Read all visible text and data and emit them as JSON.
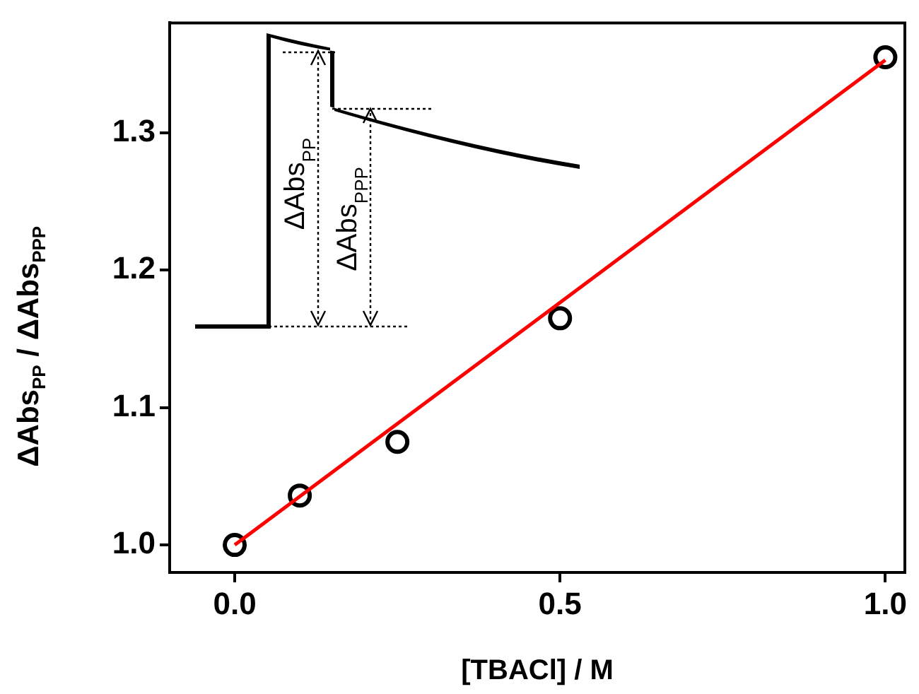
{
  "chart_data": {
    "type": "scatter",
    "xlabel": "[TBACl] / M",
    "ylabel": "ΔAbs$_{PP}$ / ΔAbs$_{PPP}$",
    "xlim": [
      -0.1,
      1.03
    ],
    "ylim": [
      0.98,
      1.38
    ],
    "xticks": [
      {
        "value": 0,
        "label": "0.0"
      },
      {
        "value": 0.5,
        "label": "0.5"
      },
      {
        "value": 1,
        "label": "1.0"
      }
    ],
    "yticks": [
      {
        "value": 1,
        "label": "1.0"
      },
      {
        "value": 1.1,
        "label": "1.1"
      },
      {
        "value": 1.2,
        "label": "1.2"
      },
      {
        "value": 1.3,
        "label": "1.3"
      }
    ],
    "grid": false,
    "legend": false,
    "annotations": [
      "ΔAbs$_{PP}$",
      "ΔAbs$_{PPP}$"
    ],
    "series": [
      {
        "type": "line",
        "color": "#ff0000",
        "x": [
          0,
          1
        ],
        "values": [
          1.0,
          1.353
        ],
        "line_style": "solid",
        "marker": "none"
      },
      {
        "type": "scatter",
        "color": "#000000",
        "x": [
          0,
          0.1,
          0.25,
          0.5,
          1
        ],
        "values": [
          1.0,
          1.036,
          1.075,
          1.165,
          1.355
        ],
        "marker": "circle"
      }
    ]
  }
}
